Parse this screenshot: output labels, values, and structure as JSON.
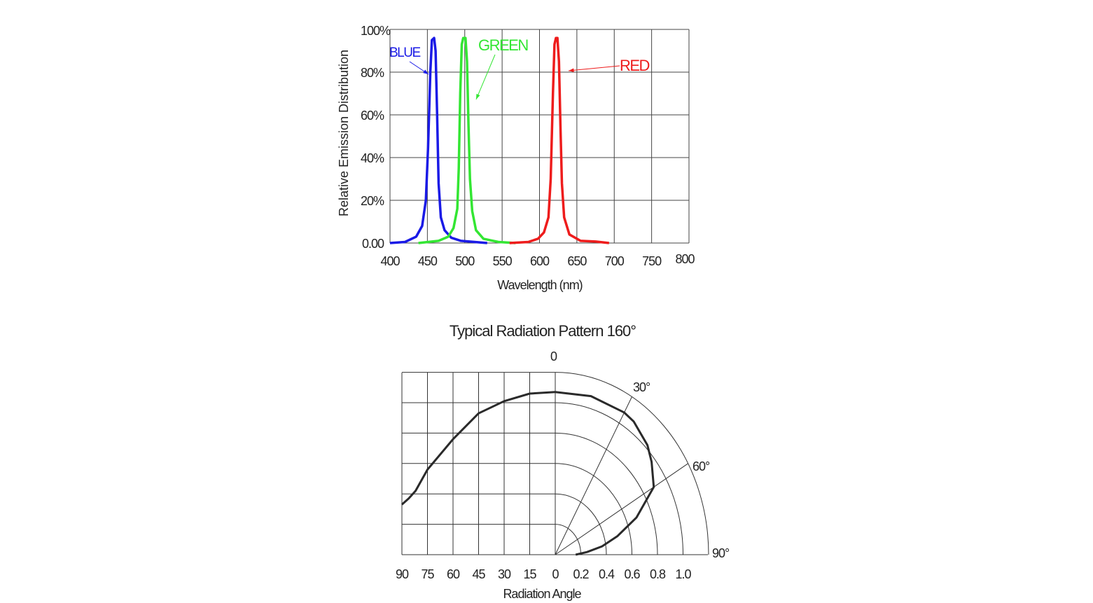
{
  "chart_data": [
    {
      "type": "line",
      "title": "",
      "xlabel": "Wavelength (nm)",
      "ylabel": "Relative Emission Distribution",
      "xlim": [
        400,
        800
      ],
      "ylim": [
        0,
        100
      ],
      "x_ticks": [
        "400",
        "450",
        "500",
        "550",
        "600",
        "650",
        "700",
        "750",
        "800"
      ],
      "y_ticks": [
        "0.00",
        "20%",
        "40%",
        "60%",
        "80%",
        "100%"
      ],
      "grid": true,
      "series": [
        {
          "name": "BLUE",
          "color": "#1a1ae6",
          "points": [
            [
              400,
              0
            ],
            [
              420,
              0.5
            ],
            [
              435,
              3
            ],
            [
              443,
              8
            ],
            [
              448,
              20
            ],
            [
              451,
              45
            ],
            [
              454,
              80
            ],
            [
              456,
              95
            ],
            [
              459,
              96
            ],
            [
              461,
              90
            ],
            [
              463,
              60
            ],
            [
              465,
              28
            ],
            [
              468,
              12
            ],
            [
              473,
              6
            ],
            [
              482,
              2.5
            ],
            [
              495,
              1
            ],
            [
              530,
              0
            ]
          ]
        },
        {
          "name": "GREEN",
          "color": "#33e633",
          "points": [
            [
              438,
              0
            ],
            [
              465,
              1
            ],
            [
              478,
              3
            ],
            [
              485,
              7
            ],
            [
              490,
              16
            ],
            [
              492,
              35
            ],
            [
              494,
              70
            ],
            [
              496,
              93
            ],
            [
              498,
              96
            ],
            [
              501,
              96
            ],
            [
              503,
              85
            ],
            [
              505,
              55
            ],
            [
              507,
              30
            ],
            [
              510,
              15
            ],
            [
              515,
              6
            ],
            [
              525,
              2
            ],
            [
              545,
              0.5
            ],
            [
              568,
              0
            ]
          ]
        },
        {
          "name": "RED",
          "color": "#ee1c1c",
          "points": [
            [
              560,
              0
            ],
            [
              585,
              0.5
            ],
            [
              598,
              2
            ],
            [
              606,
              5
            ],
            [
              612,
              12
            ],
            [
              615,
              30
            ],
            [
              618,
              70
            ],
            [
              620,
              93
            ],
            [
              622,
              96
            ],
            [
              624,
              96
            ],
            [
              626,
              85
            ],
            [
              628,
              55
            ],
            [
              630,
              28
            ],
            [
              633,
              12
            ],
            [
              640,
              4
            ],
            [
              655,
              1
            ],
            [
              675,
              0.7
            ],
            [
              693,
              0
            ]
          ]
        }
      ]
    },
    {
      "type": "line",
      "title": "Typical Radiation Pattern   160°",
      "top_label": "0",
      "xlabel": "Radiation Angle",
      "left_x_ticks": [
        "90",
        "75",
        "60",
        "45",
        "30",
        "15",
        "0"
      ],
      "right_x_ticks": [
        "0.2",
        "0.4",
        "0.6",
        "0.8",
        "1.0"
      ],
      "polar_angle_labels": [
        "30°",
        "60°",
        "90°"
      ],
      "grid": true,
      "left_series": {
        "name": "relative intensity vs angle",
        "points": [
          [
            0,
            1.07
          ],
          [
            15,
            1.06
          ],
          [
            30,
            1.01
          ],
          [
            45,
            0.93
          ],
          [
            60,
            0.76
          ],
          [
            75,
            0.56
          ],
          [
            82,
            0.42
          ],
          [
            86,
            0.37
          ],
          [
            90,
            0.33
          ]
        ]
      },
      "right_series": {
        "name": "polar pattern",
        "points": [
          [
            0,
            1.07
          ],
          [
            15,
            1.08
          ],
          [
            30,
            1.08
          ],
          [
            35,
            1.07
          ],
          [
            45,
            1.02
          ],
          [
            51,
            0.97
          ],
          [
            60,
            0.89
          ],
          [
            69,
            0.68
          ],
          [
            76,
            0.5
          ],
          [
            81.5,
            0.37
          ],
          [
            86,
            0.25
          ],
          [
            90,
            0.16
          ]
        ]
      }
    }
  ]
}
